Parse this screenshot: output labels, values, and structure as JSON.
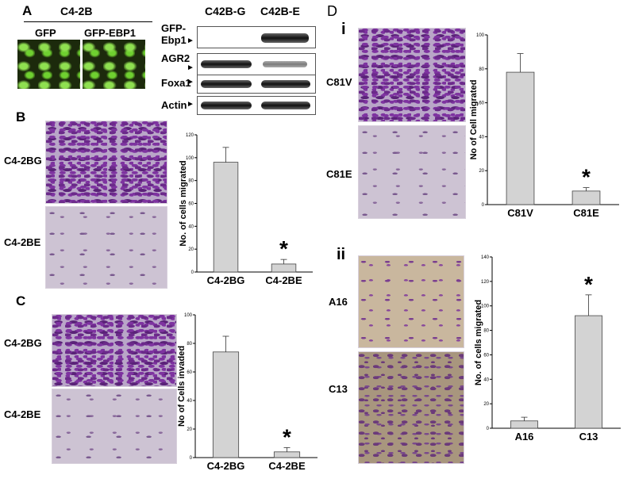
{
  "panels": {
    "A": {
      "label": "A",
      "header": "C4-2B",
      "image_labels": [
        "GFP",
        "GFP-EBP1"
      ],
      "blot_columns": [
        "C42B-G",
        "C42B-E"
      ],
      "blot_rows": [
        "GFP-\nEbp1",
        "AGR2",
        "Foxa1",
        "Actin"
      ]
    },
    "B": {
      "label": "B",
      "image_labels": [
        "C4-2BG",
        "C4-2BE"
      ]
    },
    "C": {
      "label": "C",
      "image_labels": [
        "C4-2BG",
        "C4-2BE"
      ]
    },
    "D": {
      "label": "D",
      "sub_i": "i",
      "sub_ii": "ii",
      "image_labels_i": [
        "C81V",
        "C81E"
      ],
      "image_labels_ii": [
        "A16",
        "C13"
      ]
    }
  },
  "chart_data": [
    {
      "id": "B",
      "type": "bar",
      "categories": [
        "C4-2BG",
        "C4-2BE"
      ],
      "values": [
        96,
        7
      ],
      "errors": [
        13,
        4
      ],
      "ylabel": "No. of cells migrated",
      "ylim": [
        0,
        120
      ],
      "yticks": [
        0,
        20,
        40,
        60,
        80,
        100,
        120
      ],
      "significance": [
        "",
        "*"
      ],
      "bar_color": "#d3d3d3"
    },
    {
      "id": "C",
      "type": "bar",
      "categories": [
        "C4-2BG",
        "C4-2BE"
      ],
      "values": [
        74,
        4
      ],
      "errors": [
        11,
        3
      ],
      "ylabel": "No of Cells invaded",
      "ylim": [
        0,
        100
      ],
      "yticks": [
        0,
        20,
        40,
        60,
        80,
        100
      ],
      "significance": [
        "",
        "*"
      ],
      "bar_color": "#d3d3d3"
    },
    {
      "id": "Di",
      "type": "bar",
      "categories": [
        "C81V",
        "C81E"
      ],
      "values": [
        78,
        8
      ],
      "errors": [
        11,
        2
      ],
      "ylabel": "No of Cell migrated",
      "ylim": [
        0,
        100
      ],
      "yticks": [
        0,
        20,
        40,
        60,
        80,
        100
      ],
      "significance": [
        "",
        "*"
      ],
      "bar_color": "#d3d3d3"
    },
    {
      "id": "Dii",
      "type": "bar",
      "categories": [
        "A16",
        "C13"
      ],
      "values": [
        6,
        92
      ],
      "errors": [
        3,
        17
      ],
      "ylabel": "No. of cells migrated",
      "ylim": [
        0,
        140
      ],
      "yticks": [
        0,
        20,
        40,
        60,
        80,
        100,
        120,
        140
      ],
      "significance": [
        "",
        "*"
      ],
      "bar_color": "#d3d3d3"
    }
  ]
}
